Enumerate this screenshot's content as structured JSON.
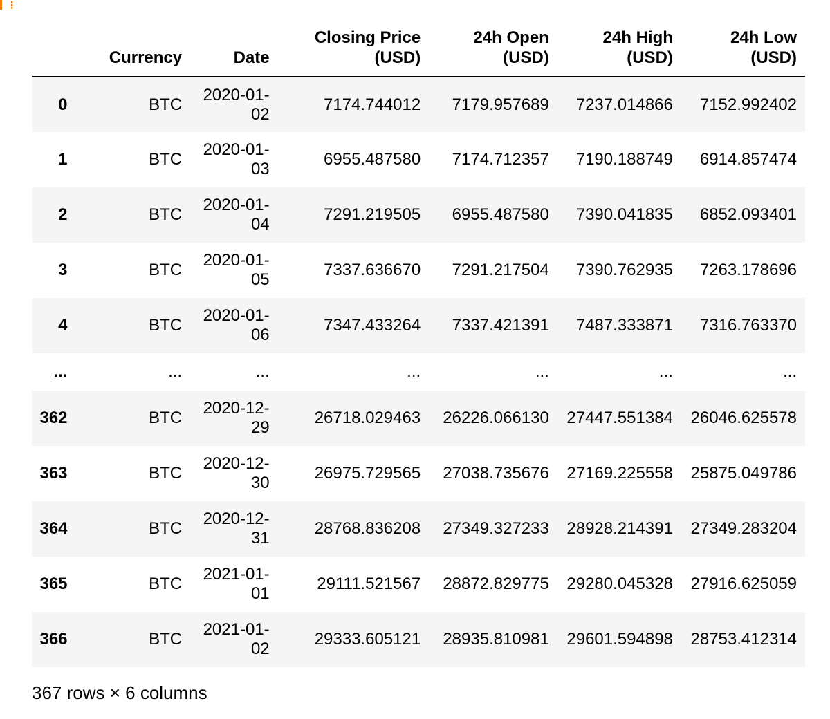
{
  "columns": {
    "index": "",
    "currency": "Currency",
    "date": "Date",
    "closing": [
      "Closing Price",
      "(USD)"
    ],
    "open": [
      "24h Open",
      "(USD)"
    ],
    "high": [
      "24h High",
      "(USD)"
    ],
    "low": [
      "24h Low",
      "(USD)"
    ]
  },
  "rows": [
    {
      "index": "0",
      "currency": "BTC",
      "date": [
        "2020-01-",
        "02"
      ],
      "closing": "7174.744012",
      "open": "7179.957689",
      "high": "7237.014866",
      "low": "7152.992402"
    },
    {
      "index": "1",
      "currency": "BTC",
      "date": [
        "2020-01-",
        "03"
      ],
      "closing": "6955.487580",
      "open": "7174.712357",
      "high": "7190.188749",
      "low": "6914.857474"
    },
    {
      "index": "2",
      "currency": "BTC",
      "date": [
        "2020-01-",
        "04"
      ],
      "closing": "7291.219505",
      "open": "6955.487580",
      "high": "7390.041835",
      "low": "6852.093401"
    },
    {
      "index": "3",
      "currency": "BTC",
      "date": [
        "2020-01-",
        "05"
      ],
      "closing": "7337.636670",
      "open": "7291.217504",
      "high": "7390.762935",
      "low": "7263.178696"
    },
    {
      "index": "4",
      "currency": "BTC",
      "date": [
        "2020-01-",
        "06"
      ],
      "closing": "7347.433264",
      "open": "7337.421391",
      "high": "7487.333871",
      "low": "7316.763370"
    },
    {
      "index": "...",
      "currency": "...",
      "date": [
        "..."
      ],
      "closing": "...",
      "open": "...",
      "high": "...",
      "low": "...",
      "ellipsis": true
    },
    {
      "index": "362",
      "currency": "BTC",
      "date": [
        "2020-12-",
        "29"
      ],
      "closing": "26718.029463",
      "open": "26226.066130",
      "high": "27447.551384",
      "low": "26046.625578"
    },
    {
      "index": "363",
      "currency": "BTC",
      "date": [
        "2020-12-",
        "30"
      ],
      "closing": "26975.729565",
      "open": "27038.735676",
      "high": "27169.225558",
      "low": "25875.049786"
    },
    {
      "index": "364",
      "currency": "BTC",
      "date": [
        "2020-12-",
        "31"
      ],
      "closing": "28768.836208",
      "open": "27349.327233",
      "high": "28928.214391",
      "low": "27349.283204"
    },
    {
      "index": "365",
      "currency": "BTC",
      "date": [
        "2021-01-",
        "01"
      ],
      "closing": "29111.521567",
      "open": "28872.829775",
      "high": "29280.045328",
      "low": "27916.625059"
    },
    {
      "index": "366",
      "currency": "BTC",
      "date": [
        "2021-01-",
        "02"
      ],
      "closing": "29333.605121",
      "open": "28935.810981",
      "high": "29601.594898",
      "low": "28753.412314"
    }
  ],
  "shape_note": "367 rows × 6 columns",
  "colors": {
    "stripe": "#f5f5f5",
    "cell_marker": "#f57c00"
  }
}
